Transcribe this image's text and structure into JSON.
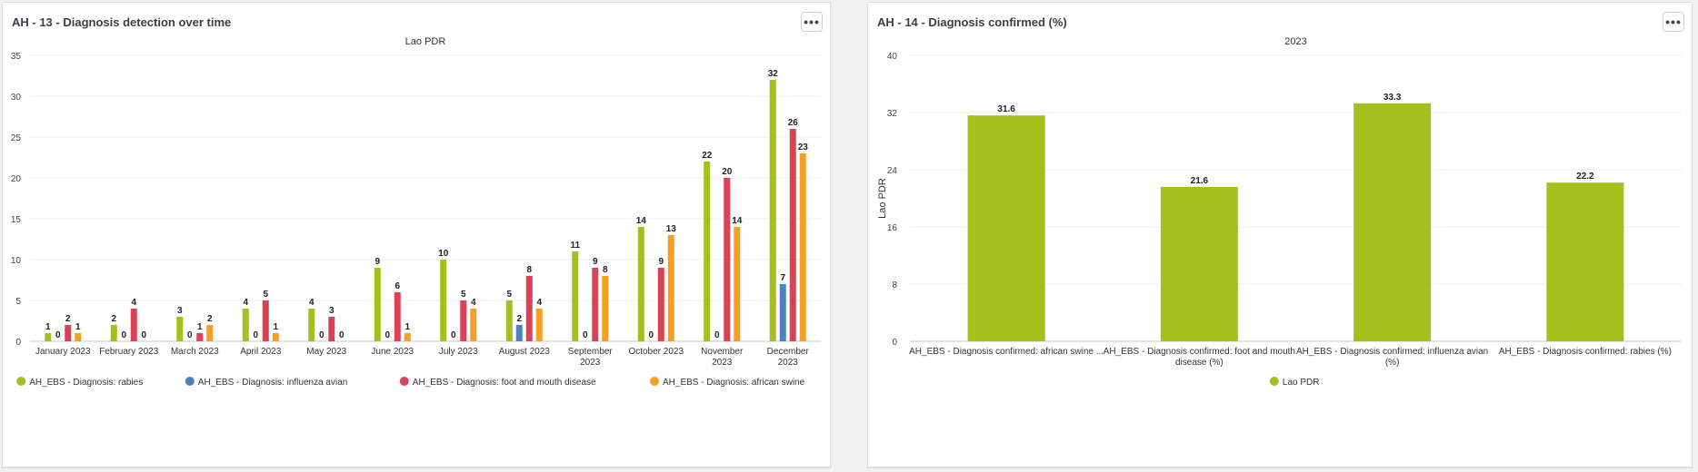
{
  "panels": [
    {
      "title": "AH - 13 - Diagnosis detection over time",
      "menu_icon": "more-horizontal-icon",
      "menu_label": "•••"
    },
    {
      "title": "AH - 14 - Diagnosis confirmed (%)",
      "menu_icon": "more-horizontal-icon",
      "menu_label": "•••"
    }
  ],
  "chart_data": [
    {
      "type": "bar",
      "title": "Lao PDR",
      "xlabel": "",
      "ylabel": "",
      "ylim": [
        0,
        35
      ],
      "yticks": [
        0,
        5,
        10,
        15,
        20,
        25,
        30,
        35
      ],
      "grid": true,
      "legend_position": "bottom",
      "categories": [
        [
          "January 2023"
        ],
        [
          "February 2023"
        ],
        [
          "March 2023"
        ],
        [
          "April 2023"
        ],
        [
          "May 2023"
        ],
        [
          "June 2023"
        ],
        [
          "July 2023"
        ],
        [
          "August 2023"
        ],
        [
          "September",
          "2023"
        ],
        [
          "October 2023"
        ],
        [
          "November",
          "2023"
        ],
        [
          "December",
          "2023"
        ]
      ],
      "series": [
        {
          "name": "AH_EBS - Diagnosis: rabies",
          "color": "#a5bf1d",
          "values": [
            1,
            2,
            3,
            4,
            4,
            9,
            10,
            5,
            11,
            14,
            22,
            32
          ]
        },
        {
          "name": "AH_EBS - Diagnosis: influenza avian",
          "color": "#4f81bd",
          "values": [
            0,
            0,
            0,
            0,
            0,
            0,
            0,
            2,
            0,
            0,
            0,
            7
          ]
        },
        {
          "name": "AH_EBS - Diagnosis: foot and mouth disease",
          "color": "#d94355",
          "values": [
            2,
            4,
            1,
            5,
            3,
            6,
            5,
            8,
            9,
            9,
            20,
            26
          ]
        },
        {
          "name": "AH_EBS - Diagnosis: african swine",
          "color": "#f79f25",
          "values": [
            1,
            0,
            2,
            1,
            0,
            1,
            4,
            4,
            8,
            13,
            14,
            23
          ]
        }
      ]
    },
    {
      "type": "bar",
      "title": "2023",
      "xlabel": "",
      "ylabel": "Lao PDR",
      "ylim": [
        0,
        40
      ],
      "yticks": [
        0,
        8,
        16,
        24,
        32,
        40
      ],
      "grid": true,
      "legend_position": "bottom",
      "categories": [
        [
          "AH_EBS - Diagnosis confirmed: african swine ..."
        ],
        [
          "AH_EBS - Diagnosis confirmed: foot and mouth",
          "disease (%)"
        ],
        [
          "AH_EBS - Diagnosis confirmed: influenza avian",
          "(%)"
        ],
        [
          "AH_EBS - Diagnosis confirmed: rabies (%)"
        ]
      ],
      "series": [
        {
          "name": "Lao PDR",
          "color": "#a5bf1d",
          "values": [
            31.6,
            21.6,
            33.3,
            22.2
          ]
        }
      ]
    }
  ]
}
